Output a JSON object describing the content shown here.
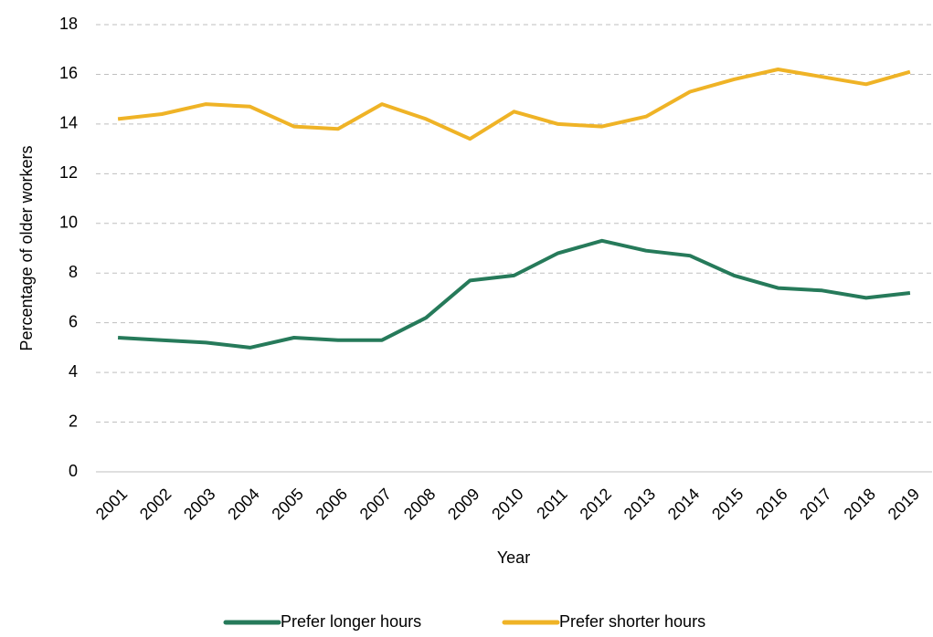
{
  "chart_data": {
    "type": "line",
    "x_label": "Year",
    "y_label": "Percentage of older workers",
    "categories": [
      "2001",
      "2002",
      "2003",
      "2004",
      "2005",
      "2006",
      "2007",
      "2008",
      "2009",
      "2010",
      "2011",
      "2012",
      "2013",
      "2014",
      "2015",
      "2016",
      "2017",
      "2018",
      "2019"
    ],
    "series": [
      {
        "name": "Prefer longer hours",
        "color": "#267a5a",
        "values": [
          5.4,
          5.3,
          5.2,
          5.0,
          5.4,
          5.3,
          5.3,
          6.2,
          7.7,
          7.9,
          8.8,
          9.3,
          8.9,
          8.7,
          7.9,
          7.4,
          7.3,
          7.0,
          7.2
        ]
      },
      {
        "name": "Prefer shorter hours",
        "color": "#efb326",
        "values": [
          14.2,
          14.4,
          14.8,
          14.7,
          13.9,
          13.8,
          14.8,
          14.2,
          13.4,
          14.5,
          14.0,
          13.9,
          14.3,
          15.3,
          15.8,
          16.2,
          15.9,
          15.6,
          16.1
        ]
      }
    ],
    "ylim": [
      0,
      18
    ],
    "yticks": [
      0,
      2,
      4,
      6,
      8,
      10,
      12,
      14,
      16,
      18
    ],
    "grid": true,
    "legend": "bottom"
  }
}
